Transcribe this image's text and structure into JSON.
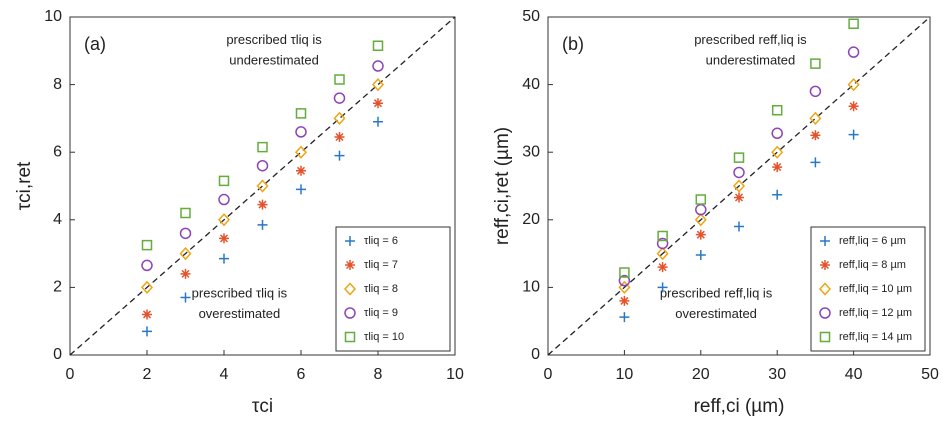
{
  "chart_data": [
    {
      "type": "scatter",
      "panel_label": "(a)",
      "x_label": "τci",
      "y_label": "τci,ret",
      "x": [
        2,
        3,
        4,
        5,
        6,
        7,
        8
      ],
      "series": [
        {
          "name": "τliq = 6",
          "color": "#2878c8",
          "marker": "plus",
          "values": [
            0.7,
            1.7,
            2.85,
            3.85,
            4.9,
            5.9,
            6.9
          ]
        },
        {
          "name": "τliq = 7",
          "color": "#e5532c",
          "marker": "star",
          "values": [
            1.2,
            2.4,
            3.45,
            4.45,
            5.45,
            6.45,
            7.45
          ]
        },
        {
          "name": "τliq = 8",
          "color": "#eda514",
          "marker": "diamond",
          "values": [
            2,
            3,
            4,
            5,
            6,
            7,
            8
          ]
        },
        {
          "name": "τliq = 9",
          "color": "#8e44b8",
          "marker": "circle",
          "values": [
            2.65,
            3.6,
            4.6,
            5.6,
            6.6,
            7.6,
            8.55
          ]
        },
        {
          "name": "τliq = 10",
          "color": "#62ad3c",
          "marker": "square",
          "values": [
            3.25,
            4.2,
            5.15,
            6.15,
            7.15,
            8.15,
            9.15
          ]
        }
      ],
      "annotations": [
        "prescribed τliq is",
        "underestimated",
        "prescribed τliq is",
        "overestimated"
      ],
      "xlim": [
        0,
        10
      ],
      "ylim": [
        0,
        10
      ],
      "xticks": [
        0,
        2,
        4,
        6,
        8,
        10
      ],
      "yticks": [
        0,
        2,
        4,
        6,
        8,
        10
      ],
      "legend": "lower right"
    },
    {
      "type": "scatter",
      "panel_label": "(b)",
      "x_label": "reff,ci (µm)",
      "y_label": "reff,ci,ret (µm)",
      "x": [
        10,
        15,
        20,
        25,
        30,
        35,
        40
      ],
      "series": [
        {
          "name": "reff,liq = 6 µm",
          "color": "#2878c8",
          "marker": "plus",
          "values": [
            5.6,
            10,
            14.8,
            19,
            23.7,
            28.5,
            32.6
          ]
        },
        {
          "name": "reff,liq = 8 µm",
          "color": "#e5532c",
          "marker": "star",
          "values": [
            8,
            13,
            17.8,
            23.3,
            27.8,
            32.5,
            36.8
          ]
        },
        {
          "name": "reff,liq = 10 µm",
          "color": "#eda514",
          "marker": "diamond",
          "values": [
            10,
            15,
            20,
            25,
            30,
            35,
            40
          ]
        },
        {
          "name": "reff,liq = 12 µm",
          "color": "#8e44b8",
          "marker": "circle",
          "values": [
            11,
            16.5,
            21.5,
            27,
            32.8,
            39,
            44.8
          ]
        },
        {
          "name": "reff,liq = 14 µm",
          "color": "#62ad3c",
          "marker": "square",
          "values": [
            12.2,
            17.6,
            23,
            29.2,
            36.2,
            43.1,
            49
          ]
        }
      ],
      "annotations": [
        "prescribed reff,liq is",
        "underestimated",
        "prescribed reff,liq is",
        "overestimated"
      ],
      "xlim": [
        0,
        50
      ],
      "ylim": [
        0,
        50
      ],
      "xticks": [
        0,
        10,
        20,
        30,
        40,
        50
      ],
      "yticks": [
        0,
        10,
        20,
        30,
        40,
        50
      ],
      "legend": "lower right"
    }
  ]
}
